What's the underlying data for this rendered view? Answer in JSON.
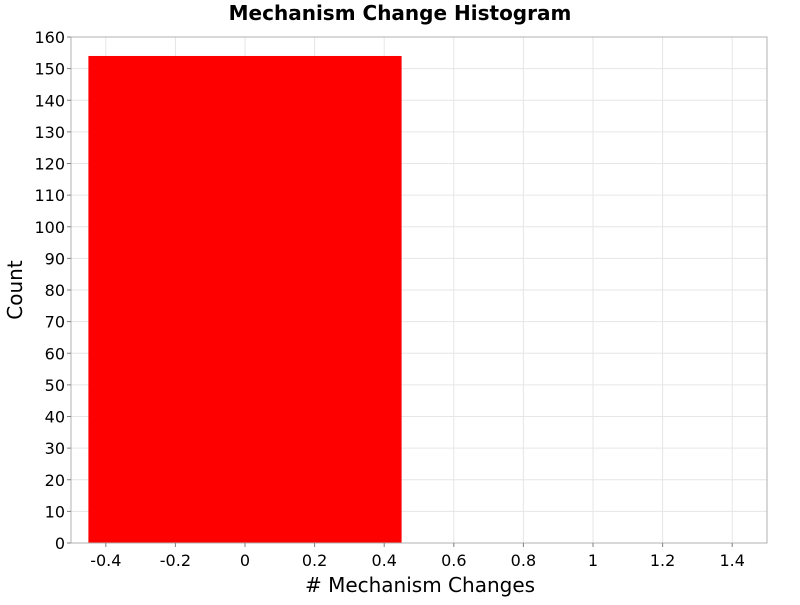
{
  "chart_data": {
    "type": "bar",
    "title": "Mechanism Change Histogram",
    "xlabel": "# Mechanism Changes",
    "ylabel": "Count",
    "xlim": [
      -0.5,
      1.5
    ],
    "ylim": [
      0,
      160
    ],
    "bins": [
      {
        "x_start": -0.45,
        "x_end": 0.45,
        "value": 154
      }
    ],
    "x_ticks": [
      -0.4,
      -0.2,
      0,
      0.2,
      0.4,
      0.6,
      0.8,
      1,
      1.2,
      1.4
    ],
    "x_tick_labels": [
      "-0.4",
      "-0.2",
      "0",
      "0.2",
      "0.4",
      "0.6",
      "0.8",
      "1",
      "1.2",
      "1.4"
    ],
    "y_ticks": [
      0,
      10,
      20,
      30,
      40,
      50,
      60,
      70,
      80,
      90,
      100,
      110,
      120,
      130,
      140,
      150,
      160
    ],
    "y_tick_labels": [
      "0",
      "10",
      "20",
      "30",
      "40",
      "50",
      "60",
      "70",
      "80",
      "90",
      "100",
      "110",
      "120",
      "130",
      "140",
      "150",
      "160"
    ],
    "grid": true,
    "bar_color": "#ff0000",
    "grid_color": "#e6e6e6",
    "frame_color": "#b0b0b0"
  }
}
